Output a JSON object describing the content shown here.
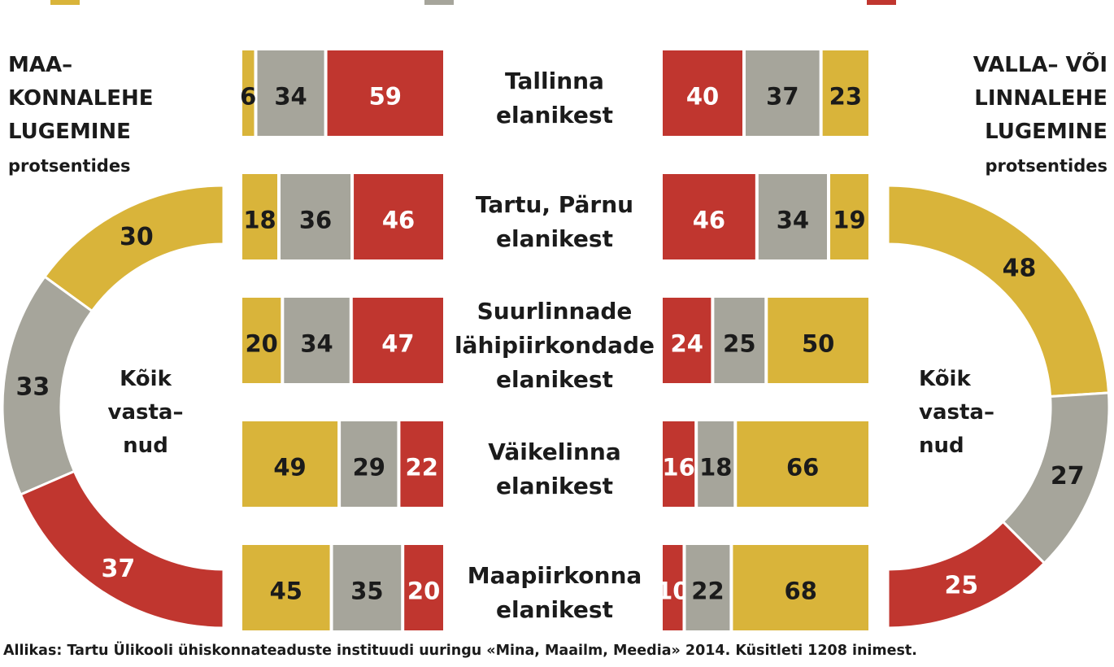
{
  "colors": {
    "yellow": "#d9b43a",
    "gray": "#a6a59b",
    "red": "#c0362f"
  },
  "left_heading": "MAA–\nKONNALEHE\nLUGEMINE",
  "left_unit": "protsentides",
  "right_heading": "VALLA– VÕI\nLINNALEHE\nLUGEMINE",
  "right_unit": "protsentides",
  "all_respondents_label": "Kõik\nvasta–\nnud",
  "source": "Allikas: Tartu Ülikooli ühiskonnateaduste instituudi uuringu «Mina, Maailm, Meedia» 2014. Küsitleti 1208 inimest.",
  "chart_data": {
    "type": "bar",
    "stacked": true,
    "unit": "%",
    "categories": [
      "Tallinna elanikest",
      "Tartu, Pärnu elanikest",
      "Suurlinnade lähipiirkondade elanikest",
      "Väikelinna elanikest",
      "Maapiirkonna elanikest"
    ],
    "category_lines": [
      [
        "Tallinna",
        "elanikest"
      ],
      [
        "Tartu, Pärnu",
        "elanikest"
      ],
      [
        "Suurlinnade",
        "lähipiirkondade",
        "elanikest"
      ],
      [
        "Väikelinna",
        "elanikest"
      ],
      [
        "Maapiirkonna",
        "elanikest"
      ]
    ],
    "panels": [
      {
        "side": "left",
        "stack_order": [
          "yellow",
          "gray",
          "red"
        ],
        "rows": [
          {
            "yellow": 6,
            "gray": 34,
            "red": 59
          },
          {
            "yellow": 18,
            "gray": 36,
            "red": 46
          },
          {
            "yellow": 20,
            "gray": 34,
            "red": 47
          },
          {
            "yellow": 49,
            "gray": 29,
            "red": 22
          },
          {
            "yellow": 45,
            "gray": 35,
            "red": 20
          }
        ],
        "all_respondents": {
          "yellow": 30,
          "gray": 33,
          "red": 37
        }
      },
      {
        "side": "right",
        "stack_order": [
          "red",
          "gray",
          "yellow"
        ],
        "rows": [
          {
            "red": 40,
            "gray": 37,
            "yellow": 23
          },
          {
            "red": 46,
            "gray": 34,
            "yellow": 19
          },
          {
            "red": 24,
            "gray": 25,
            "yellow": 50
          },
          {
            "red": 16,
            "gray": 18,
            "yellow": 66
          },
          {
            "red": 10,
            "gray": 22,
            "yellow": 68
          }
        ],
        "all_respondents": {
          "yellow": 48,
          "gray": 27,
          "red": 25
        }
      }
    ]
  }
}
